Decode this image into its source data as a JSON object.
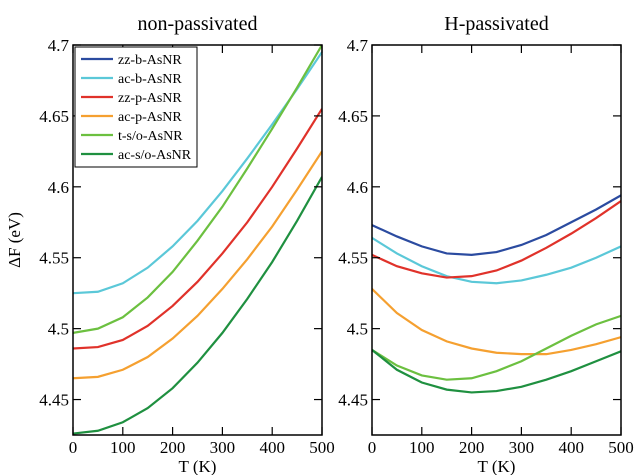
{
  "chart_data": [
    {
      "type": "line",
      "title": "non-passivated",
      "xlabel": "T (K)",
      "ylabel": "ΔF (eV)",
      "legend": "upper left",
      "xlim": [
        0,
        500
      ],
      "ylim": [
        4.425,
        4.7
      ],
      "xticks": [
        0,
        100,
        200,
        300,
        400,
        500
      ],
      "yticks": [
        4.45,
        4.5,
        4.55,
        4.6,
        4.65,
        4.7
      ],
      "x": [
        0,
        50,
        100,
        150,
        200,
        250,
        300,
        350,
        400,
        450,
        500
      ],
      "series": [
        {
          "name": "zz-b-AsNR",
          "color": "#2b4ba0",
          "values": [
            null,
            null,
            null,
            null,
            null,
            null,
            null,
            null,
            null,
            null,
            null
          ]
        },
        {
          "name": "ac-b-AsNR",
          "color": "#5bc8d8",
          "values": [
            4.525,
            4.526,
            4.532,
            4.543,
            4.558,
            4.576,
            4.597,
            4.62,
            4.644,
            4.669,
            4.695
          ]
        },
        {
          "name": "zz-p-AsNR",
          "color": "#e0322a",
          "values": [
            4.486,
            4.487,
            4.492,
            4.502,
            4.516,
            4.533,
            4.553,
            4.575,
            4.6,
            4.627,
            4.655
          ]
        },
        {
          "name": "ac-p-AsNR",
          "color": "#f5a030",
          "values": [
            4.465,
            4.466,
            4.471,
            4.48,
            4.493,
            4.509,
            4.528,
            4.549,
            4.572,
            4.598,
            4.625
          ]
        },
        {
          "name": "t-s/o-AsNR",
          "color": "#6cc040",
          "values": [
            4.497,
            4.5,
            4.508,
            4.522,
            4.54,
            4.562,
            4.586,
            4.613,
            4.641,
            4.67,
            4.7
          ]
        },
        {
          "name": "ac-s/o-AsNR",
          "color": "#1f9040",
          "values": [
            4.426,
            4.428,
            4.434,
            4.444,
            4.458,
            4.476,
            4.497,
            4.521,
            4.547,
            4.576,
            4.607
          ]
        }
      ]
    },
    {
      "type": "line",
      "title": "H-passivated",
      "xlabel": "T (K)",
      "xlim": [
        0,
        500
      ],
      "ylim": [
        4.425,
        4.7
      ],
      "xticks": [
        0,
        100,
        200,
        300,
        400,
        500
      ],
      "yticks": [
        4.45,
        4.5,
        4.55,
        4.6,
        4.65,
        4.7
      ],
      "x": [
        0,
        50,
        100,
        150,
        200,
        250,
        300,
        350,
        400,
        450,
        500
      ],
      "series": [
        {
          "color": "#2b4ba0",
          "values": [
            4.573,
            4.565,
            4.558,
            4.553,
            4.552,
            4.554,
            4.559,
            4.566,
            4.575,
            4.584,
            4.594
          ]
        },
        {
          "color": "#5bc8d8",
          "values": [
            4.564,
            4.553,
            4.544,
            4.537,
            4.533,
            4.532,
            4.534,
            4.538,
            4.543,
            4.55,
            4.558
          ]
        },
        {
          "color": "#e0322a",
          "values": [
            4.552,
            4.544,
            4.539,
            4.536,
            4.537,
            4.541,
            4.548,
            4.557,
            4.567,
            4.578,
            4.59
          ]
        },
        {
          "color": "#f5a030",
          "values": [
            4.528,
            4.511,
            4.499,
            4.491,
            4.486,
            4.483,
            4.482,
            4.482,
            4.485,
            4.489,
            4.494
          ]
        },
        {
          "color": "#6cc040",
          "values": [
            4.485,
            4.474,
            4.467,
            4.464,
            4.465,
            4.47,
            4.477,
            4.486,
            4.495,
            4.503,
            4.509
          ]
        },
        {
          "color": "#1f9040",
          "values": [
            4.485,
            4.471,
            4.462,
            4.457,
            4.455,
            4.456,
            4.459,
            4.464,
            4.47,
            4.477,
            4.484
          ]
        }
      ]
    }
  ]
}
